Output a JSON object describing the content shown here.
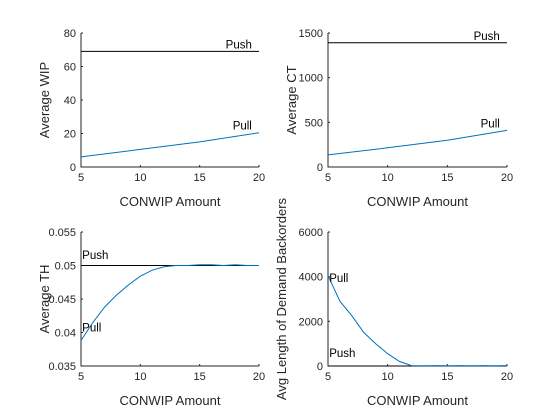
{
  "chart_data": [
    {
      "type": "line",
      "xlabel": "CONWIP Amount",
      "ylabel": "Average WIP",
      "xlim": [
        5,
        20
      ],
      "ylim": [
        0,
        80
      ],
      "xticks": [
        "5",
        "10",
        "15",
        "20"
      ],
      "yticks": [
        "0",
        "20",
        "40",
        "60",
        "80"
      ],
      "grid": false,
      "series": [
        {
          "name": "Push",
          "color": "#000000",
          "x": [
            5,
            20
          ],
          "y": [
            69,
            69
          ]
        },
        {
          "name": "Pull",
          "color": "#0072BD",
          "x": [
            5,
            10,
            15,
            20
          ],
          "y": [
            6,
            10.5,
            15,
            20.5
          ]
        }
      ],
      "annotations": [
        {
          "text": "Push",
          "x": 19.4,
          "y": 69
        },
        {
          "text": "Pull",
          "x": 19.4,
          "y": 20.5
        }
      ]
    },
    {
      "type": "line",
      "xlabel": "CONWIP Amount",
      "ylabel": "Average CT",
      "xlim": [
        5,
        20
      ],
      "ylim": [
        0,
        1500
      ],
      "xticks": [
        "5",
        "10",
        "15",
        "20"
      ],
      "yticks": [
        "0",
        "500",
        "1000",
        "1500"
      ],
      "grid": false,
      "series": [
        {
          "name": "Push",
          "color": "#000000",
          "x": [
            5,
            20
          ],
          "y": [
            1390,
            1390
          ]
        },
        {
          "name": "Pull",
          "color": "#0072BD",
          "x": [
            5,
            10,
            15,
            20
          ],
          "y": [
            135,
            215,
            300,
            410
          ]
        }
      ],
      "annotations": [
        {
          "text": "Push",
          "x": 19.4,
          "y": 1390
        },
        {
          "text": "Pull",
          "x": 19.4,
          "y": 410
        }
      ]
    },
    {
      "type": "line",
      "xlabel": "CONWIP Amount",
      "ylabel": "Average TH",
      "xlim": [
        5,
        20
      ],
      "ylim": [
        0.035,
        0.055
      ],
      "xticks": [
        "5",
        "10",
        "15",
        "20"
      ],
      "yticks": [
        "0.035",
        "0.04",
        "0.045",
        "0.05",
        "0.055"
      ],
      "grid": false,
      "series": [
        {
          "name": "Push",
          "color": "#000000",
          "x": [
            5,
            20
          ],
          "y": [
            0.05,
            0.05
          ]
        },
        {
          "name": "Pull",
          "color": "#0072BD",
          "x": [
            5,
            6,
            7,
            8,
            9,
            10,
            11,
            12,
            13,
            14,
            15,
            16,
            17,
            18,
            19,
            20
          ],
          "y": [
            0.0388,
            0.0415,
            0.0438,
            0.0456,
            0.0471,
            0.0484,
            0.0493,
            0.0498,
            0.05,
            0.05,
            0.0501,
            0.0501,
            0.05,
            0.0501,
            0.05,
            0.05
          ]
        }
      ],
      "annotations": [
        {
          "text": "Push",
          "x": 5.1,
          "y": 0.0505
        },
        {
          "text": "Pull",
          "x": 5.1,
          "y": 0.0397
        }
      ]
    },
    {
      "type": "line",
      "xlabel": "CONWIP Amount",
      "ylabel": "Avg Length of Demand Backorders",
      "xlim": [
        5,
        20
      ],
      "ylim": [
        0,
        6000
      ],
      "xticks": [
        "5",
        "10",
        "15",
        "20"
      ],
      "yticks": [
        "0",
        "2000",
        "4000",
        "6000"
      ],
      "grid": false,
      "series": [
        {
          "name": "Push",
          "color": "#000000",
          "x": [
            5,
            20
          ],
          "y": [
            0,
            0
          ]
        },
        {
          "name": "Pull",
          "color": "#0072BD",
          "x": [
            5,
            6,
            7,
            8,
            9,
            10,
            11,
            12,
            13,
            14,
            15,
            16,
            17,
            18,
            19,
            20
          ],
          "y": [
            4050,
            2900,
            2250,
            1500,
            1000,
            550,
            200,
            20,
            10,
            20,
            10,
            20,
            10,
            20,
            10,
            20
          ]
        }
      ],
      "annotations": [
        {
          "text": "Push",
          "x": 5.1,
          "y": 260
        },
        {
          "text": "Pull",
          "x": 5.1,
          "y": 3620
        }
      ]
    }
  ]
}
